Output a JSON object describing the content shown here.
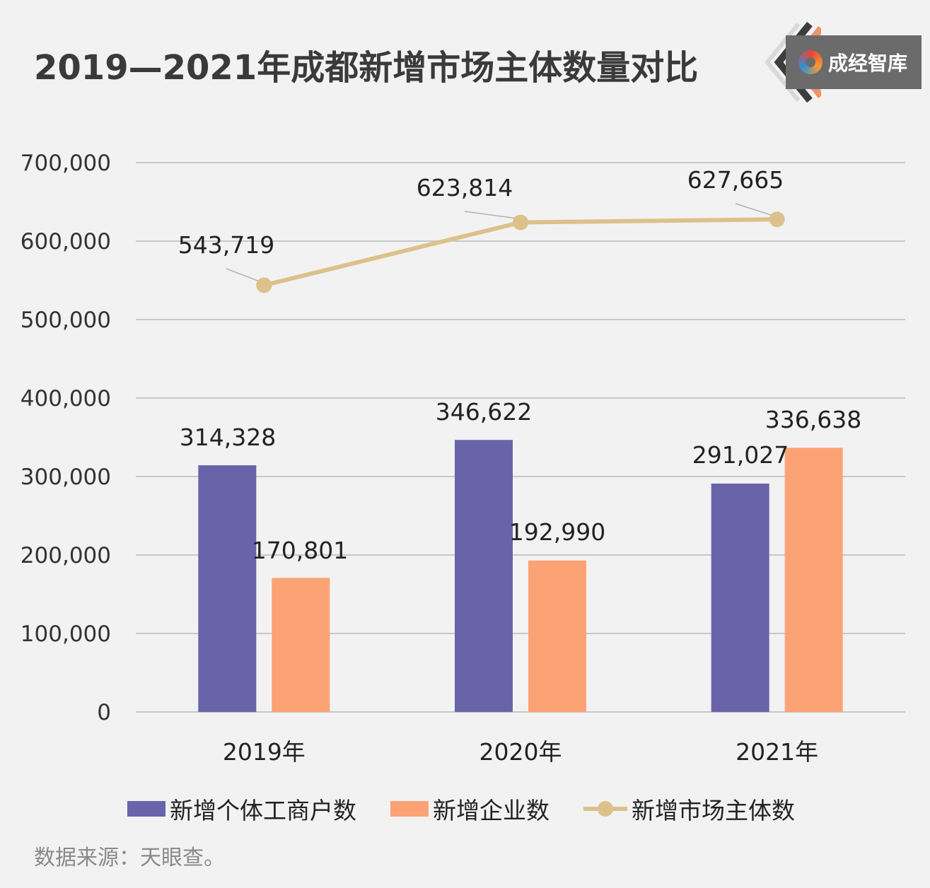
{
  "title": "2019—2021年成都新增市场主体数量对比",
  "brand": {
    "name": "成经智库",
    "logo_icon": "swirl-logo-icon"
  },
  "source": "数据来源：天眼查。",
  "colors": {
    "background": "#f2f2f2",
    "individual_bar": "#6964a9",
    "enterprise_bar": "#fca375",
    "total_line": "#dcc18a",
    "gridline": "#c8c8c8"
  },
  "chart_data": {
    "type": "bar",
    "categories": [
      "2019年",
      "2020年",
      "2021年"
    ],
    "series": [
      {
        "name": "新增个体工商户数",
        "type": "bar",
        "values": [
          314328,
          346622,
          291027
        ],
        "labels": [
          "314,328",
          "346,622",
          "291,027"
        ]
      },
      {
        "name": "新增企业数",
        "type": "bar",
        "values": [
          170801,
          192990,
          336638
        ],
        "labels": [
          "170,801",
          "192,990",
          "336,638"
        ]
      },
      {
        "name": "新增市场主体数",
        "type": "line",
        "values": [
          543719,
          623814,
          627665
        ],
        "labels": [
          "543,719",
          "623,814",
          "627,665"
        ]
      }
    ],
    "ylim": [
      0,
      700000
    ],
    "yticks": [
      0,
      100000,
      200000,
      300000,
      400000,
      500000,
      600000,
      700000
    ],
    "ytick_labels": [
      "0",
      "100,000",
      "200,000",
      "300,000",
      "400,000",
      "500,000",
      "600,000",
      "700,000"
    ],
    "grid": true,
    "legend": "bottom",
    "xlabel": "",
    "ylabel": ""
  }
}
